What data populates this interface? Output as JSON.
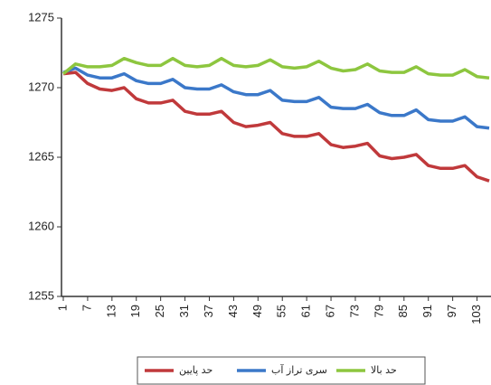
{
  "chart_data": {
    "type": "line",
    "x": [
      1,
      4,
      7,
      10,
      13,
      16,
      19,
      22,
      25,
      28,
      31,
      34,
      37,
      40,
      43,
      46,
      49,
      52,
      55,
      58,
      61,
      64,
      67,
      70,
      73,
      76,
      79,
      82,
      85,
      88,
      91,
      94,
      97,
      100,
      103,
      106
    ],
    "series": [
      {
        "name": "حد پایین",
        "color": "#c0393b",
        "values": [
          1271,
          1271.1,
          1270.3,
          1269.9,
          1269.8,
          1270.0,
          1269.2,
          1268.9,
          1268.9,
          1269.1,
          1268.3,
          1268.1,
          1268.1,
          1268.3,
          1267.5,
          1267.2,
          1267.3,
          1267.5,
          1266.7,
          1266.5,
          1266.5,
          1266.7,
          1265.9,
          1265.7,
          1265.8,
          1266.0,
          1265.1,
          1264.9,
          1265.0,
          1265.2,
          1264.4,
          1264.2,
          1264.2,
          1264.4,
          1263.6,
          1263.3
        ]
      },
      {
        "name": "سری تراز آب",
        "color": "#3b78c9",
        "values": [
          1271.1,
          1271.4,
          1270.9,
          1270.7,
          1270.7,
          1271.0,
          1270.5,
          1270.3,
          1270.3,
          1270.6,
          1270.0,
          1269.9,
          1269.9,
          1270.2,
          1269.7,
          1269.5,
          1269.5,
          1269.8,
          1269.1,
          1269.0,
          1269.0,
          1269.3,
          1268.6,
          1268.5,
          1268.5,
          1268.8,
          1268.2,
          1268.0,
          1268.0,
          1268.4,
          1267.7,
          1267.6,
          1267.6,
          1267.9,
          1267.2,
          1267.1
        ]
      },
      {
        "name": "حد بالا",
        "color": "#8dc63f",
        "values": [
          1271.0,
          1271.7,
          1271.5,
          1271.5,
          1271.6,
          1272.1,
          1271.8,
          1271.6,
          1271.6,
          1272.1,
          1271.6,
          1271.5,
          1271.6,
          1272.1,
          1271.6,
          1271.5,
          1271.6,
          1272.0,
          1271.5,
          1271.4,
          1271.5,
          1271.9,
          1271.4,
          1271.2,
          1271.3,
          1271.7,
          1271.2,
          1271.1,
          1271.1,
          1271.5,
          1271.0,
          1270.9,
          1270.9,
          1271.3,
          1270.8,
          1270.7
        ]
      }
    ],
    "xlim": [
      1,
      106
    ],
    "xticks": [
      1,
      7,
      13,
      19,
      25,
      31,
      37,
      43,
      49,
      55,
      61,
      67,
      73,
      79,
      85,
      91,
      97,
      103
    ],
    "ylim": [
      1255,
      1275
    ],
    "yticks": [
      1255,
      1260,
      1265,
      1270,
      1275
    ],
    "grid": false
  }
}
